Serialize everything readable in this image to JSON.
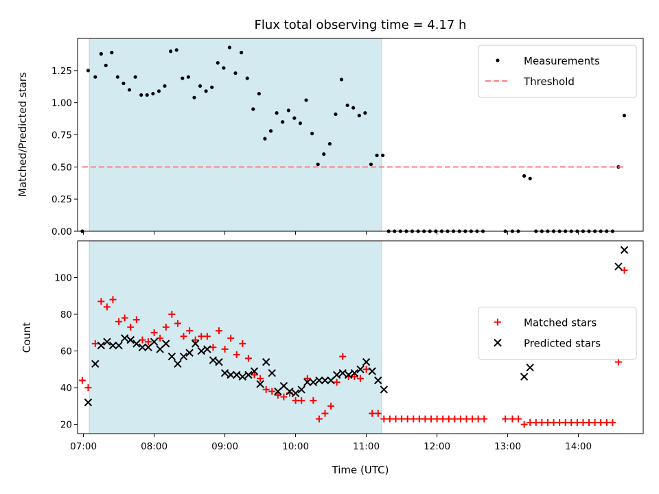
{
  "chart_data": [
    {
      "type": "scatter",
      "title": "Flux total observing time = 4.17 h",
      "ylabel": "Matched/Predicted stars",
      "xlabel": "",
      "xlim": [
        "06:55",
        "14:55"
      ],
      "ylim": [
        0,
        1.5
      ],
      "x_ticks": [
        "07:00",
        "08:00",
        "09:00",
        "10:00",
        "11:00",
        "12:00",
        "13:00",
        "14:00"
      ],
      "y_ticks": [
        "0.00",
        "0.25",
        "0.50",
        "0.75",
        "1.00",
        "1.25"
      ],
      "y_tick_values": [
        0,
        0.25,
        0.5,
        0.75,
        1.0,
        1.25
      ],
      "shaded_interval": [
        "07:05",
        "11:13"
      ],
      "shaded_color": "#d3eaf0",
      "legend": {
        "position": "top-right",
        "entries": [
          "Measurements",
          "Threshold"
        ]
      },
      "series": [
        {
          "name": "Measurements",
          "marker": "dot",
          "color": "#000000",
          "points": [
            [
              "06:59",
              0.0
            ],
            [
              "07:04",
              1.25
            ],
            [
              "07:10",
              1.2
            ],
            [
              "07:15",
              1.38
            ],
            [
              "07:19",
              1.29
            ],
            [
              "07:24",
              1.39
            ],
            [
              "07:29",
              1.2
            ],
            [
              "07:34",
              1.15
            ],
            [
              "07:39",
              1.1
            ],
            [
              "07:44",
              1.2
            ],
            [
              "07:49",
              1.06
            ],
            [
              "07:54",
              1.06
            ],
            [
              "07:59",
              1.07
            ],
            [
              "08:04",
              1.09
            ],
            [
              "08:09",
              1.13
            ],
            [
              "08:14",
              1.4
            ],
            [
              "08:19",
              1.41
            ],
            [
              "08:24",
              1.19
            ],
            [
              "08:29",
              1.2
            ],
            [
              "08:34",
              1.04
            ],
            [
              "08:39",
              1.13
            ],
            [
              "08:44",
              1.09
            ],
            [
              "08:49",
              1.12
            ],
            [
              "08:54",
              1.31
            ],
            [
              "08:59",
              1.27
            ],
            [
              "09:04",
              1.43
            ],
            [
              "09:09",
              1.23
            ],
            [
              "09:14",
              1.39
            ],
            [
              "09:19",
              1.19
            ],
            [
              "09:24",
              0.95
            ],
            [
              "09:29",
              1.07
            ],
            [
              "09:34",
              0.72
            ],
            [
              "09:39",
              0.78
            ],
            [
              "09:44",
              0.92
            ],
            [
              "09:49",
              0.85
            ],
            [
              "09:54",
              0.94
            ],
            [
              "09:59",
              0.88
            ],
            [
              "10:04",
              0.84
            ],
            [
              "10:09",
              1.02
            ],
            [
              "10:14",
              0.76
            ],
            [
              "10:19",
              0.52
            ],
            [
              "10:24",
              0.6
            ],
            [
              "10:29",
              0.68
            ],
            [
              "10:34",
              0.91
            ],
            [
              "10:39",
              1.18
            ],
            [
              "10:44",
              0.98
            ],
            [
              "10:49",
              0.96
            ],
            [
              "10:54",
              0.9
            ],
            [
              "10:59",
              0.92
            ],
            [
              "11:04",
              0.52
            ],
            [
              "11:09",
              0.59
            ],
            [
              "11:14",
              0.59
            ],
            [
              "11:19",
              0.0
            ],
            [
              "11:24",
              0.0
            ],
            [
              "11:29",
              0.0
            ],
            [
              "11:34",
              0.0
            ],
            [
              "11:39",
              0.0
            ],
            [
              "11:44",
              0.0
            ],
            [
              "11:49",
              0.0
            ],
            [
              "11:54",
              0.0
            ],
            [
              "11:59",
              0.0
            ],
            [
              "12:04",
              0.0
            ],
            [
              "12:09",
              0.0
            ],
            [
              "12:14",
              0.0
            ],
            [
              "12:19",
              0.0
            ],
            [
              "12:24",
              0.0
            ],
            [
              "12:29",
              0.0
            ],
            [
              "12:34",
              0.0
            ],
            [
              "12:39",
              0.0
            ],
            [
              "12:58",
              0.0
            ],
            [
              "13:04",
              0.0
            ],
            [
              "13:09",
              0.0
            ],
            [
              "13:14",
              0.43
            ],
            [
              "13:19",
              0.41
            ],
            [
              "13:24",
              0.0
            ],
            [
              "13:29",
              0.0
            ],
            [
              "13:34",
              0.0
            ],
            [
              "13:39",
              0.0
            ],
            [
              "13:44",
              0.0
            ],
            [
              "13:49",
              0.0
            ],
            [
              "13:54",
              0.0
            ],
            [
              "13:59",
              0.0
            ],
            [
              "14:04",
              0.0
            ],
            [
              "14:09",
              0.0
            ],
            [
              "14:14",
              0.0
            ],
            [
              "14:19",
              0.0
            ],
            [
              "14:24",
              0.0
            ],
            [
              "14:29",
              0.0
            ],
            [
              "14:34",
              0.5
            ],
            [
              "14:39",
              0.9
            ]
          ]
        },
        {
          "name": "Threshold",
          "marker": "dashed-line",
          "color": "#ff7f7f",
          "points": [
            [
              "06:59",
              0.5
            ],
            [
              "14:39",
              0.5
            ]
          ]
        }
      ]
    },
    {
      "type": "scatter",
      "title": "",
      "ylabel": "Count",
      "xlabel": "Time (UTC)",
      "xlim": [
        "06:55",
        "14:55"
      ],
      "ylim": [
        15,
        120
      ],
      "x_ticks": [
        "07:00",
        "08:00",
        "09:00",
        "10:00",
        "11:00",
        "12:00",
        "13:00",
        "14:00"
      ],
      "y_ticks": [
        "20",
        "40",
        "60",
        "80",
        "100"
      ],
      "y_tick_values": [
        20,
        40,
        60,
        80,
        100
      ],
      "shaded_interval": [
        "07:05",
        "11:13"
      ],
      "shaded_color": "#d3eaf0",
      "legend": {
        "position": "center-right",
        "entries": [
          "Matched stars",
          "Predicted stars"
        ]
      },
      "series": [
        {
          "name": "Matched stars",
          "marker": "plus",
          "color": "#ff0000",
          "points": [
            [
              "06:59",
              44
            ],
            [
              "07:04",
              40
            ],
            [
              "07:10",
              64
            ],
            [
              "07:15",
              87
            ],
            [
              "07:20",
              84
            ],
            [
              "07:25",
              88
            ],
            [
              "07:30",
              76
            ],
            [
              "07:35",
              78
            ],
            [
              "07:40",
              73
            ],
            [
              "07:45",
              77
            ],
            [
              "07:50",
              66
            ],
            [
              "07:55",
              65
            ],
            [
              "08:00",
              70
            ],
            [
              "08:05",
              67
            ],
            [
              "08:10",
              73
            ],
            [
              "08:15",
              80
            ],
            [
              "08:20",
              75
            ],
            [
              "08:25",
              68
            ],
            [
              "08:30",
              71
            ],
            [
              "08:35",
              66
            ],
            [
              "08:40",
              68
            ],
            [
              "08:45",
              68
            ],
            [
              "08:50",
              62
            ],
            [
              "08:55",
              71
            ],
            [
              "09:00",
              61
            ],
            [
              "09:05",
              67
            ],
            [
              "09:10",
              58
            ],
            [
              "09:15",
              64
            ],
            [
              "09:20",
              56
            ],
            [
              "09:25",
              47
            ],
            [
              "09:30",
              45
            ],
            [
              "09:35",
              39
            ],
            [
              "09:40",
              38
            ],
            [
              "09:45",
              36
            ],
            [
              "09:50",
              35
            ],
            [
              "09:55",
              37
            ],
            [
              "10:00",
              33
            ],
            [
              "10:05",
              33
            ],
            [
              "10:10",
              45
            ],
            [
              "10:15",
              33
            ],
            [
              "10:20",
              23
            ],
            [
              "10:25",
              26
            ],
            [
              "10:30",
              30
            ],
            [
              "10:35",
              43
            ],
            [
              "10:40",
              57
            ],
            [
              "10:45",
              46
            ],
            [
              "10:50",
              46
            ],
            [
              "10:55",
              45
            ],
            [
              "11:00",
              50
            ],
            [
              "11:05",
              26
            ],
            [
              "11:10",
              26
            ],
            [
              "11:15",
              23
            ],
            [
              "11:20",
              23
            ],
            [
              "11:25",
              23
            ],
            [
              "11:30",
              23
            ],
            [
              "11:35",
              23
            ],
            [
              "11:40",
              23
            ],
            [
              "11:45",
              23
            ],
            [
              "11:50",
              23
            ],
            [
              "11:55",
              23
            ],
            [
              "12:00",
              23
            ],
            [
              "12:05",
              23
            ],
            [
              "12:10",
              23
            ],
            [
              "12:15",
              23
            ],
            [
              "12:20",
              23
            ],
            [
              "12:25",
              23
            ],
            [
              "12:30",
              23
            ],
            [
              "12:35",
              23
            ],
            [
              "12:40",
              23
            ],
            [
              "12:58",
              23
            ],
            [
              "13:04",
              23
            ],
            [
              "13:09",
              23
            ],
            [
              "13:14",
              20
            ],
            [
              "13:19",
              21
            ],
            [
              "13:24",
              21
            ],
            [
              "13:29",
              21
            ],
            [
              "13:34",
              21
            ],
            [
              "13:39",
              21
            ],
            [
              "13:44",
              21
            ],
            [
              "13:49",
              21
            ],
            [
              "13:54",
              21
            ],
            [
              "13:59",
              21
            ],
            [
              "14:04",
              21
            ],
            [
              "14:09",
              21
            ],
            [
              "14:14",
              21
            ],
            [
              "14:19",
              21
            ],
            [
              "14:24",
              21
            ],
            [
              "14:29",
              21
            ],
            [
              "14:34",
              54
            ],
            [
              "14:39",
              104
            ]
          ]
        },
        {
          "name": "Predicted stars",
          "marker": "x",
          "color": "#000000",
          "points": [
            [
              "07:04",
              32
            ],
            [
              "07:10",
              53
            ],
            [
              "07:15",
              63
            ],
            [
              "07:20",
              65
            ],
            [
              "07:25",
              63
            ],
            [
              "07:30",
              63
            ],
            [
              "07:35",
              67
            ],
            [
              "07:40",
              66
            ],
            [
              "07:45",
              64
            ],
            [
              "07:50",
              62
            ],
            [
              "07:55",
              62
            ],
            [
              "08:00",
              65
            ],
            [
              "08:05",
              61
            ],
            [
              "08:10",
              64
            ],
            [
              "08:15",
              57
            ],
            [
              "08:20",
              53
            ],
            [
              "08:25",
              57
            ],
            [
              "08:30",
              59
            ],
            [
              "08:35",
              64
            ],
            [
              "08:40",
              60
            ],
            [
              "08:45",
              61
            ],
            [
              "08:50",
              55
            ],
            [
              "08:55",
              54
            ],
            [
              "09:00",
              48
            ],
            [
              "09:05",
              47
            ],
            [
              "09:10",
              47
            ],
            [
              "09:15",
              46
            ],
            [
              "09:20",
              47
            ],
            [
              "09:25",
              49
            ],
            [
              "09:30",
              42
            ],
            [
              "09:35",
              54
            ],
            [
              "09:40",
              48
            ],
            [
              "09:45",
              38
            ],
            [
              "09:50",
              41
            ],
            [
              "09:55",
              38
            ],
            [
              "10:00",
              37
            ],
            [
              "10:05",
              39
            ],
            [
              "10:10",
              43
            ],
            [
              "10:15",
              43
            ],
            [
              "10:20",
              44
            ],
            [
              "10:25",
              44
            ],
            [
              "10:30",
              44
            ],
            [
              "10:35",
              47
            ],
            [
              "10:40",
              48
            ],
            [
              "10:45",
              47
            ],
            [
              "10:50",
              48
            ],
            [
              "10:55",
              50
            ],
            [
              "11:00",
              54
            ],
            [
              "11:05",
              49
            ],
            [
              "11:10",
              44
            ],
            [
              "11:15",
              39
            ],
            [
              "13:14",
              46
            ],
            [
              "13:19",
              51
            ],
            [
              "14:34",
              106
            ],
            [
              "14:39",
              115
            ]
          ]
        }
      ]
    }
  ]
}
